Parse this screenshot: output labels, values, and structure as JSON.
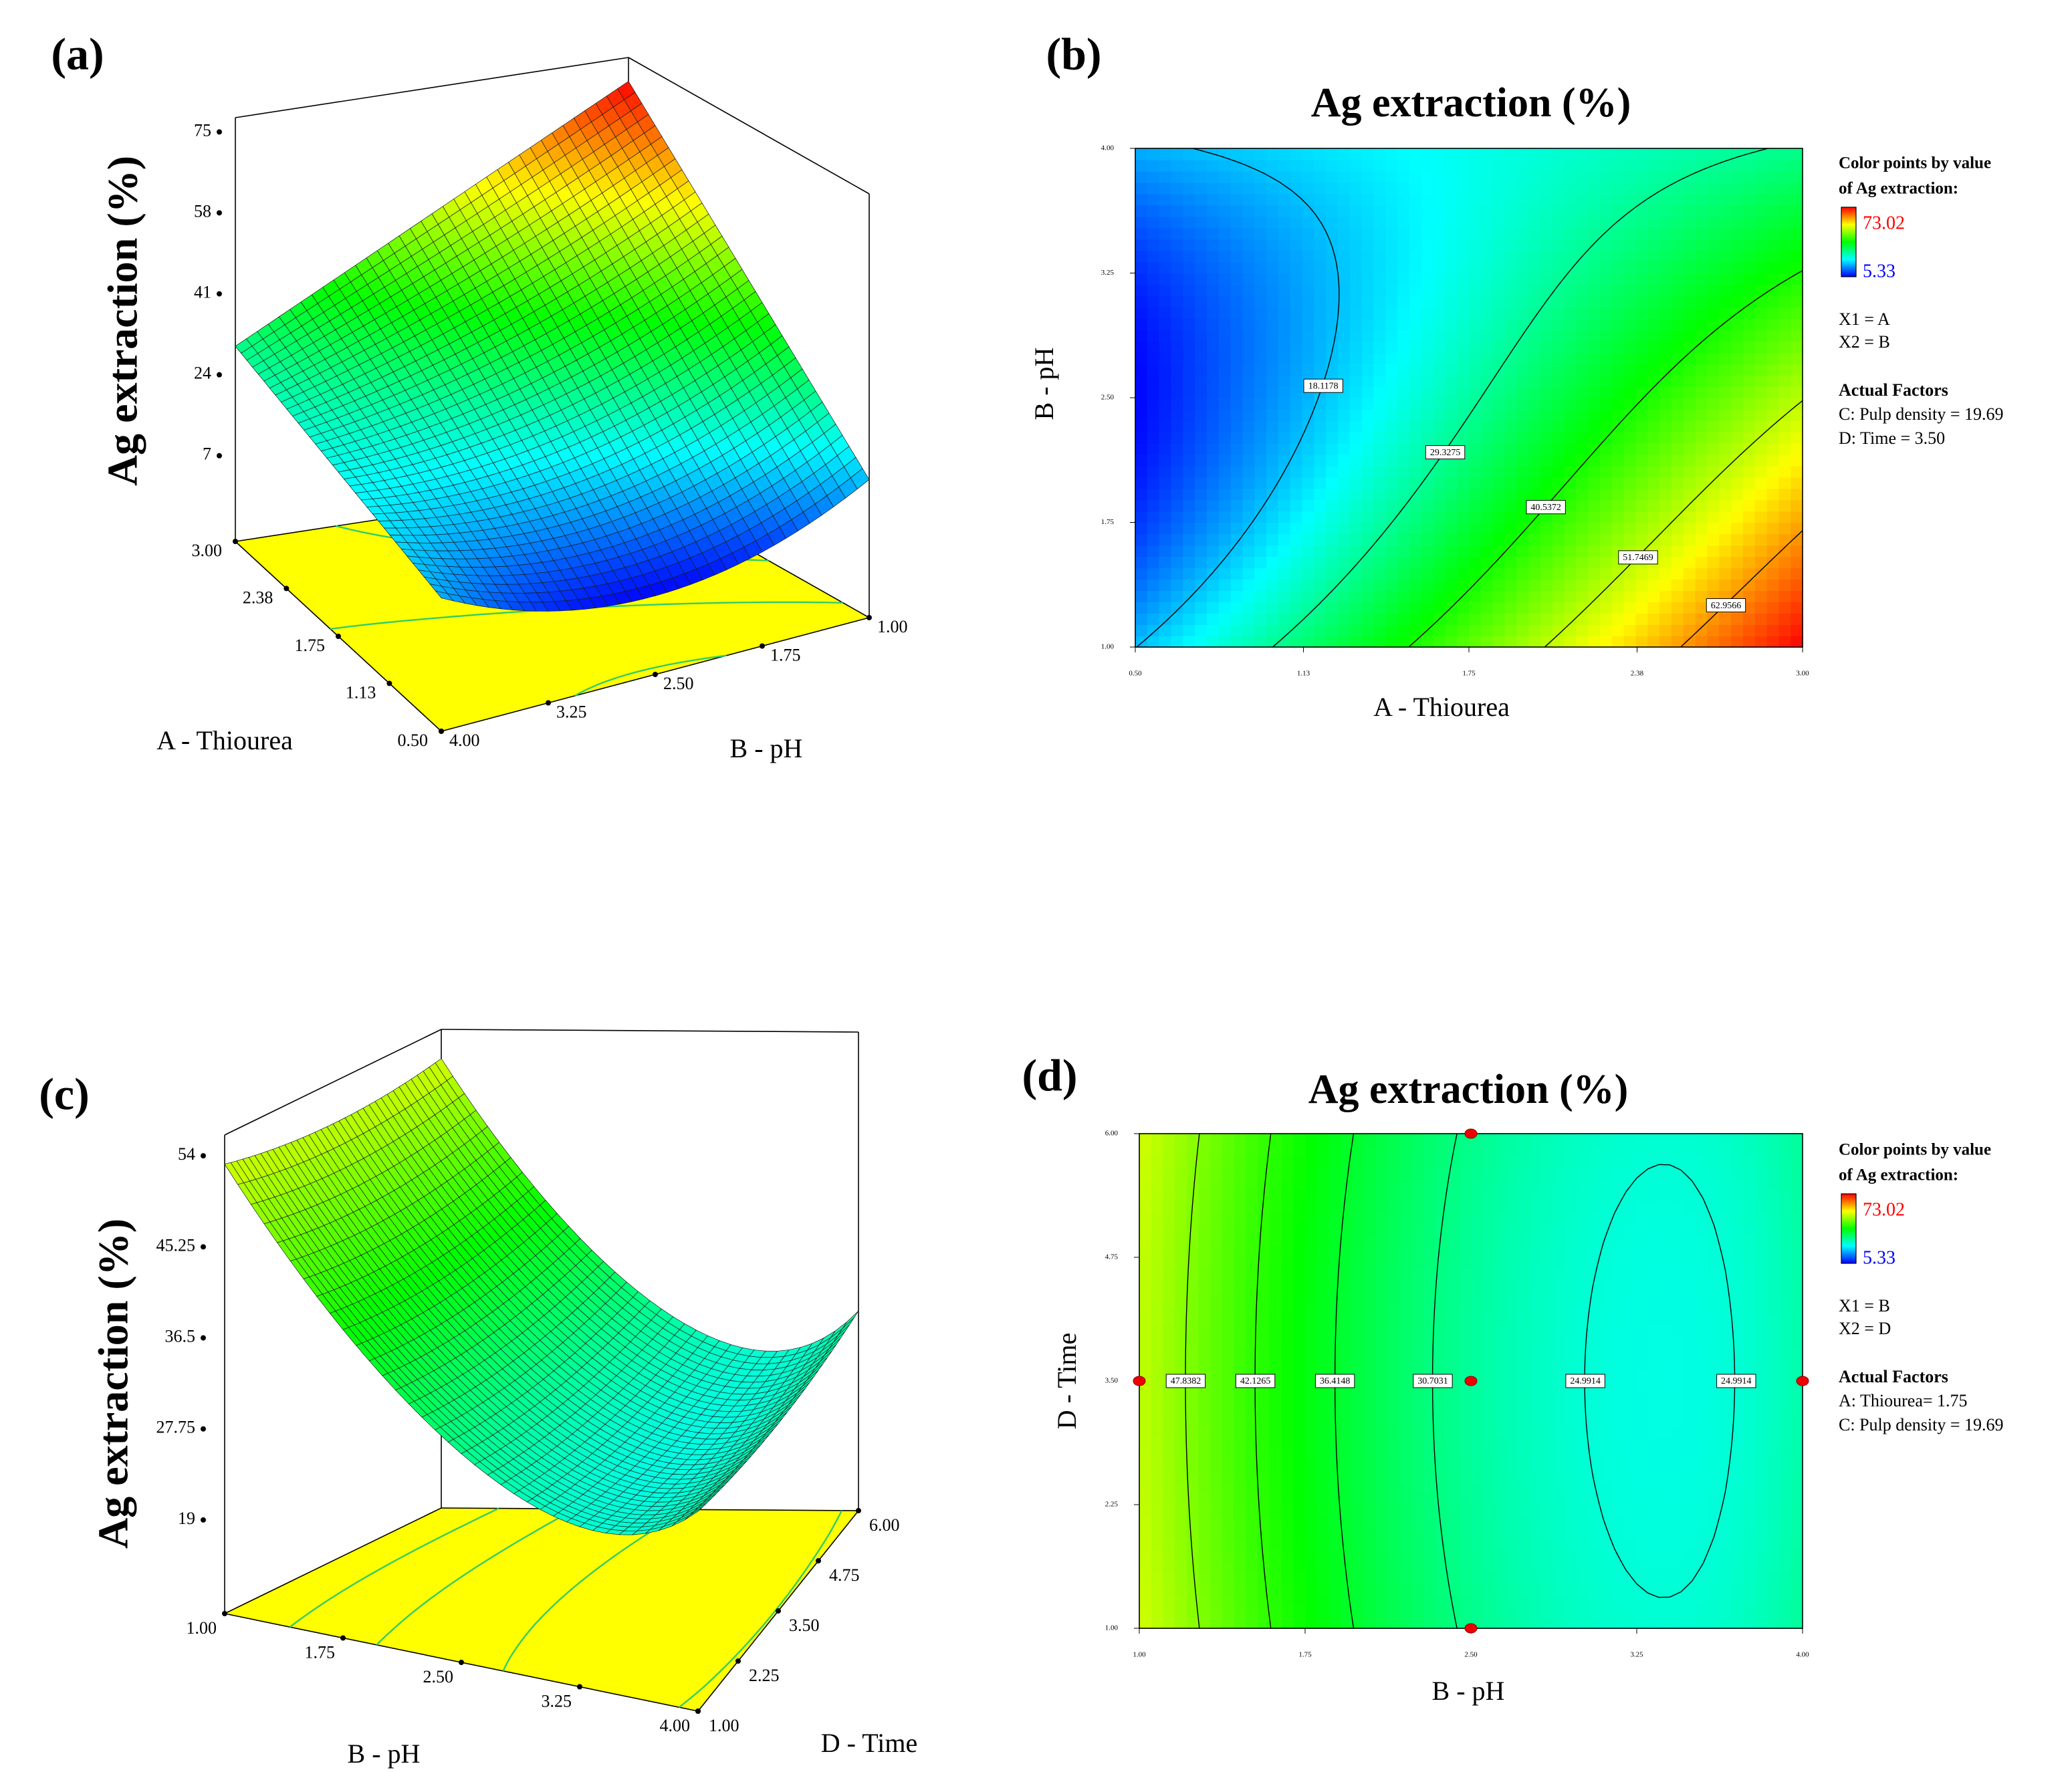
{
  "chart_data": [
    {
      "type": "surface3d",
      "panel_label": "(a)",
      "z_label": "Ag extraction (%)",
      "x_label": "A - Thiourea",
      "y_label": "B - pH",
      "xlim": [
        0.5,
        3
      ],
      "xticks": [
        {
          "value": 0.5,
          "label": "0.50"
        },
        {
          "value": 1.13,
          "label": "1.13"
        },
        1.75,
        2.38,
        {
          "value": 3,
          "label": "3.00"
        }
      ],
      "ylim": [
        1,
        4
      ],
      "yticks": [
        {
          "value": 1,
          "label": "1.00"
        },
        1.75,
        {
          "value": 2.5,
          "label": "2.50"
        },
        3.25,
        {
          "value": 4,
          "label": "4.00"
        }
      ],
      "zlim": [
        -11,
        78
      ],
      "zticks": [
        7,
        24,
        41,
        58,
        75
      ],
      "floor_color": "#ffff00",
      "floor_contour_color": "#33cc66",
      "mesh_color": "#1a1a1a",
      "colormap": [
        "#0000ff",
        "#00ffff",
        "#00ff00",
        "#ffff00",
        "#ff0000"
      ]
    },
    {
      "type": "contour",
      "panel_label": "(b)",
      "title": "Ag extraction (%)",
      "x_label": "A - Thiourea",
      "y_label": "B - pH",
      "xlim": [
        0.5,
        3
      ],
      "xticks": [
        {
          "value": 0.5,
          "label": "0.50"
        },
        1.13,
        1.75,
        2.38,
        {
          "value": 3,
          "label": "3.00"
        }
      ],
      "ylim": [
        1,
        4
      ],
      "yticks": [
        {
          "value": 1,
          "label": "1.00"
        },
        1.75,
        {
          "value": 2.5,
          "label": "2.50"
        },
        3.25,
        {
          "value": 4,
          "label": "4.00"
        }
      ],
      "levels": [
        18.1178,
        29.3275,
        40.5372,
        51.7469,
        62.9566
      ],
      "colormap": [
        "#0000ff",
        "#00ffff",
        "#00ff00",
        "#ffff00",
        "#ff0000"
      ],
      "colorbar": {
        "title": [
          "Color points by value",
          "of Ag extraction:"
        ],
        "max": 73.02,
        "min": 5.33,
        "max_color": "#ff0000",
        "min_color": "#0000ff"
      },
      "notes": [
        "X1 = A",
        "X2 = B"
      ],
      "factors_title": "Actual Factors",
      "factors": [
        "C: Pulp density = 19.69",
        "D: Time = 3.50"
      ]
    },
    {
      "type": "surface3d",
      "panel_label": "(c)",
      "z_label": "Ag extraction (%)",
      "x_label": "B - pH",
      "y_label": "D - Time",
      "xlim": [
        1,
        4
      ],
      "xticks": [
        {
          "value": 1,
          "label": "1.00"
        },
        1.75,
        {
          "value": 2.5,
          "label": "2.50"
        },
        3.25,
        {
          "value": 4,
          "label": "4.00"
        }
      ],
      "ylim": [
        1,
        6
      ],
      "yticks": [
        {
          "value": 1,
          "label": "1.00"
        },
        2.25,
        {
          "value": 3.5,
          "label": "3.50"
        },
        4.75,
        {
          "value": 6,
          "label": "6.00"
        }
      ],
      "zlim": [
        10,
        56
      ],
      "zticks": [
        19,
        27.75,
        36.5,
        45.25,
        54
      ],
      "floor_color": "#ffff00",
      "floor_contour_color": "#33cc66",
      "mesh_color": "#1a1a1a",
      "colormap": [
        "#0000ff",
        "#00ffff",
        "#00ff00",
        "#ffff00",
        "#ff0000"
      ]
    },
    {
      "type": "contour",
      "panel_label": "(d)",
      "title": "Ag extraction (%)",
      "x_label": "B - pH",
      "y_label": "D - Time",
      "xlim": [
        1,
        4
      ],
      "xticks": [
        {
          "value": 1,
          "label": "1.00"
        },
        1.75,
        {
          "value": 2.5,
          "label": "2.50"
        },
        3.25,
        {
          "value": 4,
          "label": "4.00"
        }
      ],
      "ylim": [
        1,
        6
      ],
      "yticks": [
        {
          "value": 1,
          "label": "1.00"
        },
        2.25,
        {
          "value": 3.5,
          "label": "3.50"
        },
        4.75,
        {
          "value": 6,
          "label": "6.00"
        }
      ],
      "levels": [
        47.8382,
        42.1265,
        36.4148,
        30.7031,
        24.9914
      ],
      "colormap": [
        "#0000ff",
        "#00ffff",
        "#00ff00",
        "#ffff00",
        "#ff0000"
      ],
      "colorbar": {
        "title": [
          "Color points by value",
          "of Ag extraction:"
        ],
        "max": 73.02,
        "min": 5.33,
        "max_color": "#ff0000",
        "min_color": "#0000ff"
      },
      "notes": [
        "X1 = B",
        "X2 = D"
      ],
      "factors_title": "Actual Factors",
      "factors": [
        "A: Thiourea= 1.75",
        "C: Pulp density = 19.69"
      ]
    }
  ]
}
